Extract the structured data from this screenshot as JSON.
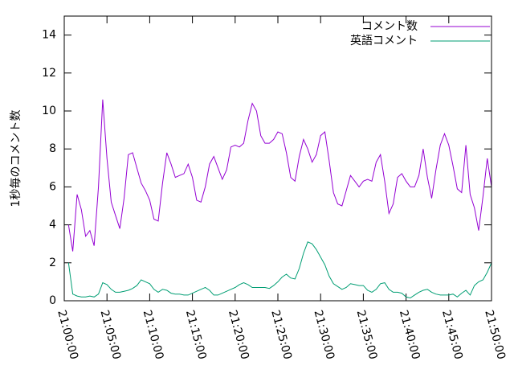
{
  "chart_data": {
    "type": "line",
    "title": "",
    "xlabel": "",
    "ylabel": "1秒毎のコメント数",
    "grid": false,
    "legend": "top-right",
    "x_range": [
      "21:00:00",
      "21:50:00"
    ],
    "x_ticks": [
      "21:00:00",
      "21:05:00",
      "21:10:00",
      "21:15:00",
      "21:20:00",
      "21:25:00",
      "21:30:00",
      "21:35:00",
      "21:40:00",
      "21:45:00",
      "21:50:00"
    ],
    "ylim": [
      0,
      15
    ],
    "y_ticks": [
      "0",
      "2",
      "4",
      "6",
      "8",
      "10",
      "12",
      "14"
    ],
    "series": [
      {
        "name": "コメント数",
        "color": "#9400d3",
        "points": [
          [
            "21:00:30",
            4.0
          ],
          [
            "21:01:00",
            2.6
          ],
          [
            "21:01:30",
            5.6
          ],
          [
            "21:02:00",
            4.8
          ],
          [
            "21:02:30",
            3.4
          ],
          [
            "21:03:00",
            3.7
          ],
          [
            "21:03:30",
            2.9
          ],
          [
            "21:04:00",
            6.0
          ],
          [
            "21:04:30",
            10.6
          ],
          [
            "21:05:00",
            7.5
          ],
          [
            "21:05:30",
            5.2
          ],
          [
            "21:06:00",
            4.5
          ],
          [
            "21:06:30",
            3.8
          ],
          [
            "21:07:00",
            5.4
          ],
          [
            "21:07:30",
            7.7
          ],
          [
            "21:08:00",
            7.8
          ],
          [
            "21:08:30",
            7.0
          ],
          [
            "21:09:00",
            6.2
          ],
          [
            "21:09:30",
            5.8
          ],
          [
            "21:10:00",
            5.3
          ],
          [
            "21:10:30",
            4.3
          ],
          [
            "21:11:00",
            4.2
          ],
          [
            "21:11:30",
            6.2
          ],
          [
            "21:12:00",
            7.8
          ],
          [
            "21:12:30",
            7.2
          ],
          [
            "21:13:00",
            6.5
          ],
          [
            "21:13:30",
            6.6
          ],
          [
            "21:14:00",
            6.7
          ],
          [
            "21:14:30",
            7.2
          ],
          [
            "21:15:00",
            6.5
          ],
          [
            "21:15:30",
            5.3
          ],
          [
            "21:16:00",
            5.2
          ],
          [
            "21:16:30",
            6.0
          ],
          [
            "21:17:00",
            7.2
          ],
          [
            "21:17:30",
            7.6
          ],
          [
            "21:18:00",
            7.0
          ],
          [
            "21:18:30",
            6.4
          ],
          [
            "21:19:00",
            6.9
          ],
          [
            "21:19:30",
            8.1
          ],
          [
            "21:20:00",
            8.2
          ],
          [
            "21:20:30",
            8.1
          ],
          [
            "21:21:00",
            8.3
          ],
          [
            "21:21:30",
            9.5
          ],
          [
            "21:22:00",
            10.4
          ],
          [
            "21:22:30",
            10.0
          ],
          [
            "21:23:00",
            8.7
          ],
          [
            "21:23:30",
            8.3
          ],
          [
            "21:24:00",
            8.3
          ],
          [
            "21:24:30",
            8.5
          ],
          [
            "21:25:00",
            8.9
          ],
          [
            "21:25:30",
            8.8
          ],
          [
            "21:26:00",
            7.8
          ],
          [
            "21:26:30",
            6.5
          ],
          [
            "21:27:00",
            6.3
          ],
          [
            "21:27:30",
            7.6
          ],
          [
            "21:28:00",
            8.5
          ],
          [
            "21:28:30",
            8.0
          ],
          [
            "21:29:00",
            7.3
          ],
          [
            "21:29:30",
            7.7
          ],
          [
            "21:30:00",
            8.7
          ],
          [
            "21:30:30",
            8.9
          ],
          [
            "21:31:00",
            7.4
          ],
          [
            "21:31:30",
            5.7
          ],
          [
            "21:32:00",
            5.1
          ],
          [
            "21:32:30",
            5.0
          ],
          [
            "21:33:00",
            5.8
          ],
          [
            "21:33:30",
            6.6
          ],
          [
            "21:34:00",
            6.3
          ],
          [
            "21:34:30",
            6.0
          ],
          [
            "21:35:00",
            6.3
          ],
          [
            "21:35:30",
            6.4
          ],
          [
            "21:36:00",
            6.3
          ],
          [
            "21:36:30",
            7.3
          ],
          [
            "21:37:00",
            7.7
          ],
          [
            "21:37:30",
            6.3
          ],
          [
            "21:38:00",
            4.6
          ],
          [
            "21:38:30",
            5.1
          ],
          [
            "21:39:00",
            6.5
          ],
          [
            "21:39:30",
            6.7
          ],
          [
            "21:40:00",
            6.3
          ],
          [
            "21:40:30",
            6.0
          ],
          [
            "21:41:00",
            6.0
          ],
          [
            "21:41:30",
            6.6
          ],
          [
            "21:42:00",
            8.0
          ],
          [
            "21:42:30",
            6.5
          ],
          [
            "21:43:00",
            5.4
          ],
          [
            "21:43:30",
            6.9
          ],
          [
            "21:44:00",
            8.2
          ],
          [
            "21:44:30",
            8.8
          ],
          [
            "21:45:00",
            8.2
          ],
          [
            "21:45:30",
            7.1
          ],
          [
            "21:46:00",
            5.9
          ],
          [
            "21:46:30",
            5.7
          ],
          [
            "21:47:00",
            8.2
          ],
          [
            "21:47:30",
            5.6
          ],
          [
            "21:48:00",
            4.9
          ],
          [
            "21:48:30",
            3.7
          ],
          [
            "21:49:00",
            5.5
          ],
          [
            "21:49:30",
            7.5
          ],
          [
            "21:50:00",
            6.0
          ]
        ]
      },
      {
        "name": "英語コメント",
        "color": "#009e73",
        "points": [
          [
            "21:00:30",
            2.0
          ],
          [
            "21:01:00",
            0.35
          ],
          [
            "21:01:30",
            0.25
          ],
          [
            "21:02:00",
            0.2
          ],
          [
            "21:02:30",
            0.2
          ],
          [
            "21:03:00",
            0.25
          ],
          [
            "21:03:30",
            0.2
          ],
          [
            "21:04:00",
            0.35
          ],
          [
            "21:04:30",
            0.95
          ],
          [
            "21:05:00",
            0.85
          ],
          [
            "21:05:30",
            0.6
          ],
          [
            "21:06:00",
            0.45
          ],
          [
            "21:06:30",
            0.45
          ],
          [
            "21:07:00",
            0.5
          ],
          [
            "21:07:30",
            0.55
          ],
          [
            "21:08:00",
            0.65
          ],
          [
            "21:08:30",
            0.8
          ],
          [
            "21:09:00",
            1.1
          ],
          [
            "21:09:30",
            1.0
          ],
          [
            "21:10:00",
            0.9
          ],
          [
            "21:10:30",
            0.6
          ],
          [
            "21:11:00",
            0.45
          ],
          [
            "21:11:30",
            0.6
          ],
          [
            "21:12:00",
            0.55
          ],
          [
            "21:12:30",
            0.4
          ],
          [
            "21:13:00",
            0.35
          ],
          [
            "21:13:30",
            0.35
          ],
          [
            "21:14:00",
            0.3
          ],
          [
            "21:14:30",
            0.3
          ],
          [
            "21:15:00",
            0.4
          ],
          [
            "21:15:30",
            0.5
          ],
          [
            "21:16:00",
            0.6
          ],
          [
            "21:16:30",
            0.7
          ],
          [
            "21:17:00",
            0.55
          ],
          [
            "21:17:30",
            0.3
          ],
          [
            "21:18:00",
            0.3
          ],
          [
            "21:18:30",
            0.4
          ],
          [
            "21:19:00",
            0.5
          ],
          [
            "21:19:30",
            0.6
          ],
          [
            "21:20:00",
            0.7
          ],
          [
            "21:20:30",
            0.85
          ],
          [
            "21:21:00",
            0.95
          ],
          [
            "21:21:30",
            0.85
          ],
          [
            "21:22:00",
            0.7
          ],
          [
            "21:22:30",
            0.7
          ],
          [
            "21:23:00",
            0.7
          ],
          [
            "21:23:30",
            0.7
          ],
          [
            "21:24:00",
            0.65
          ],
          [
            "21:24:30",
            0.8
          ],
          [
            "21:25:00",
            1.0
          ],
          [
            "21:25:30",
            1.25
          ],
          [
            "21:26:00",
            1.4
          ],
          [
            "21:26:30",
            1.2
          ],
          [
            "21:27:00",
            1.15
          ],
          [
            "21:27:30",
            1.7
          ],
          [
            "21:28:00",
            2.5
          ],
          [
            "21:28:30",
            3.1
          ],
          [
            "21:29:00",
            3.0
          ],
          [
            "21:29:30",
            2.7
          ],
          [
            "21:30:00",
            2.3
          ],
          [
            "21:30:30",
            1.9
          ],
          [
            "21:31:00",
            1.3
          ],
          [
            "21:31:30",
            0.9
          ],
          [
            "21:32:00",
            0.75
          ],
          [
            "21:32:30",
            0.6
          ],
          [
            "21:33:00",
            0.7
          ],
          [
            "21:33:30",
            0.9
          ],
          [
            "21:34:00",
            0.85
          ],
          [
            "21:34:30",
            0.8
          ],
          [
            "21:35:00",
            0.8
          ],
          [
            "21:35:30",
            0.55
          ],
          [
            "21:36:00",
            0.45
          ],
          [
            "21:36:30",
            0.6
          ],
          [
            "21:37:00",
            0.9
          ],
          [
            "21:37:30",
            0.95
          ],
          [
            "21:38:00",
            0.6
          ],
          [
            "21:38:30",
            0.45
          ],
          [
            "21:39:00",
            0.45
          ],
          [
            "21:39:30",
            0.4
          ],
          [
            "21:40:00",
            0.2
          ],
          [
            "21:40:30",
            0.15
          ],
          [
            "21:41:00",
            0.3
          ],
          [
            "21:41:30",
            0.45
          ],
          [
            "21:42:00",
            0.55
          ],
          [
            "21:42:30",
            0.6
          ],
          [
            "21:43:00",
            0.45
          ],
          [
            "21:43:30",
            0.35
          ],
          [
            "21:44:00",
            0.3
          ],
          [
            "21:44:30",
            0.3
          ],
          [
            "21:45:00",
            0.3
          ],
          [
            "21:45:30",
            0.35
          ],
          [
            "21:46:00",
            0.2
          ],
          [
            "21:46:30",
            0.4
          ],
          [
            "21:47:00",
            0.55
          ],
          [
            "21:47:30",
            0.3
          ],
          [
            "21:48:00",
            0.8
          ],
          [
            "21:48:30",
            1.0
          ],
          [
            "21:49:00",
            1.1
          ],
          [
            "21:49:30",
            1.5
          ],
          [
            "21:50:00",
            2.0
          ]
        ]
      }
    ]
  }
}
